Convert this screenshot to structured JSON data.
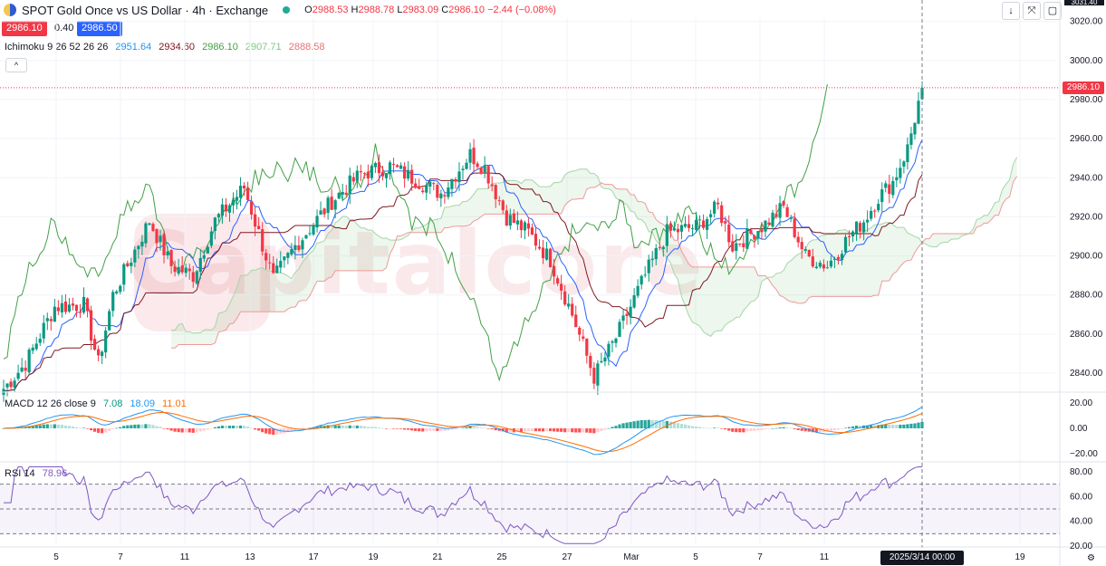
{
  "header": {
    "symbol_title": "SPOT Gold Once vs US Dollar · 4h · Exchange",
    "ohlc": [
      {
        "k": "O",
        "v": "2988.53"
      },
      {
        "k": "H",
        "v": "2988.78"
      },
      {
        "k": "L",
        "v": "2983.09"
      },
      {
        "k": "C",
        "v": "2986.10"
      }
    ],
    "change": "−2.44 (−0.08%)",
    "sell_price": "2986.10",
    "spread": "0.40",
    "buy_price": "2986.50"
  },
  "indicators": {
    "ichimoku": {
      "label": "Ichimoku 9 26 52 26 26",
      "values": [
        "2951.64",
        "2934.60",
        "2986.10",
        "2907.71",
        "2888.58"
      ]
    },
    "macd": {
      "label": "MACD 12 26 close 9",
      "values": [
        "7.08",
        "18.09",
        "11.01"
      ]
    },
    "rsi": {
      "label": "RSI 14",
      "value": "78.96"
    }
  },
  "toolbar": {
    "collapse": "^",
    "btn1": "↓",
    "btn2": "⤧",
    "btn3": "▢"
  },
  "price_axis": {
    "ticks": [
      "3020.00",
      "3000.00",
      "2980.00",
      "2960.00",
      "2940.00",
      "2920.00",
      "2900.00",
      "2880.00",
      "2860.00",
      "2840.00"
    ],
    "current_label": "2986.10",
    "top_label": "3031.40"
  },
  "macd_axis": {
    "ticks": [
      "20.00",
      "0.00",
      "−20.00"
    ]
  },
  "rsi_axis": {
    "ticks": [
      "80.00",
      "60.00",
      "40.00",
      "20.00"
    ]
  },
  "time_axis": {
    "ticks": [
      "5",
      "7",
      "11",
      "13",
      "17",
      "19",
      "21",
      "25",
      "27",
      "Mar",
      "5",
      "7",
      "11",
      "19"
    ],
    "cursor_label": "2025/3/14   00:00"
  },
  "watermark": "Capitalcore",
  "colors": {
    "up": "#089981",
    "down": "#f23645",
    "tenkan": "#2962ff",
    "kijun": "#801922",
    "chikou": "#43a047",
    "span_a": "#a5d6a7",
    "span_b": "#ef9a9a",
    "macd": "#2196f3",
    "signal": "#ff6d00",
    "rsi": "#7e57c2"
  },
  "chart_data": {
    "type": "candlestick",
    "title": "SPOT Gold Once vs US Dollar · 4h · Exchange",
    "x_range": [
      "2025-02-04",
      "2025-03-21"
    ],
    "ylim": [
      2830,
      3030
    ],
    "grid": true,
    "price_series": {
      "name": "SPOT Gold 4h close",
      "keypoints": [
        [
          0,
          2832
        ],
        [
          6,
          2845
        ],
        [
          14,
          2874
        ],
        [
          22,
          2875
        ],
        [
          26,
          2845
        ],
        [
          30,
          2880
        ],
        [
          40,
          2918
        ],
        [
          46,
          2895
        ],
        [
          52,
          2890
        ],
        [
          58,
          2918
        ],
        [
          66,
          2935
        ],
        [
          74,
          2888
        ],
        [
          80,
          2905
        ],
        [
          90,
          2928
        ],
        [
          98,
          2942
        ],
        [
          106,
          2946
        ],
        [
          112,
          2940
        ],
        [
          120,
          2932
        ],
        [
          128,
          2952
        ],
        [
          132,
          2945
        ],
        [
          138,
          2920
        ],
        [
          144,
          2912
        ],
        [
          150,
          2898
        ],
        [
          156,
          2870
        ],
        [
          162,
          2838
        ],
        [
          168,
          2858
        ],
        [
          176,
          2890
        ],
        [
          182,
          2912
        ],
        [
          190,
          2915
        ],
        [
          196,
          2925
        ],
        [
          200,
          2905
        ],
        [
          208,
          2915
        ],
        [
          214,
          2925
        ],
        [
          220,
          2900
        ],
        [
          226,
          2895
        ],
        [
          232,
          2910
        ],
        [
          236,
          2918
        ],
        [
          240,
          2930
        ],
        [
          244,
          2938
        ],
        [
          248,
          2955
        ],
        [
          252,
          2986
        ]
      ]
    },
    "ichimoku": {
      "tenkan_last": 2951.64,
      "kijun_last": 2934.6,
      "chikou_last": 2986.1,
      "span_a_last": 2907.71,
      "span_b_last": 2888.58
    },
    "macd": {
      "ylim": [
        -24,
        24
      ],
      "macd_last": 7.08,
      "signal_last": 18.09,
      "hist_last": 11.01
    },
    "rsi": {
      "ylim": [
        20,
        85
      ],
      "last": 78.96,
      "bands": [
        70,
        50,
        30
      ]
    }
  }
}
